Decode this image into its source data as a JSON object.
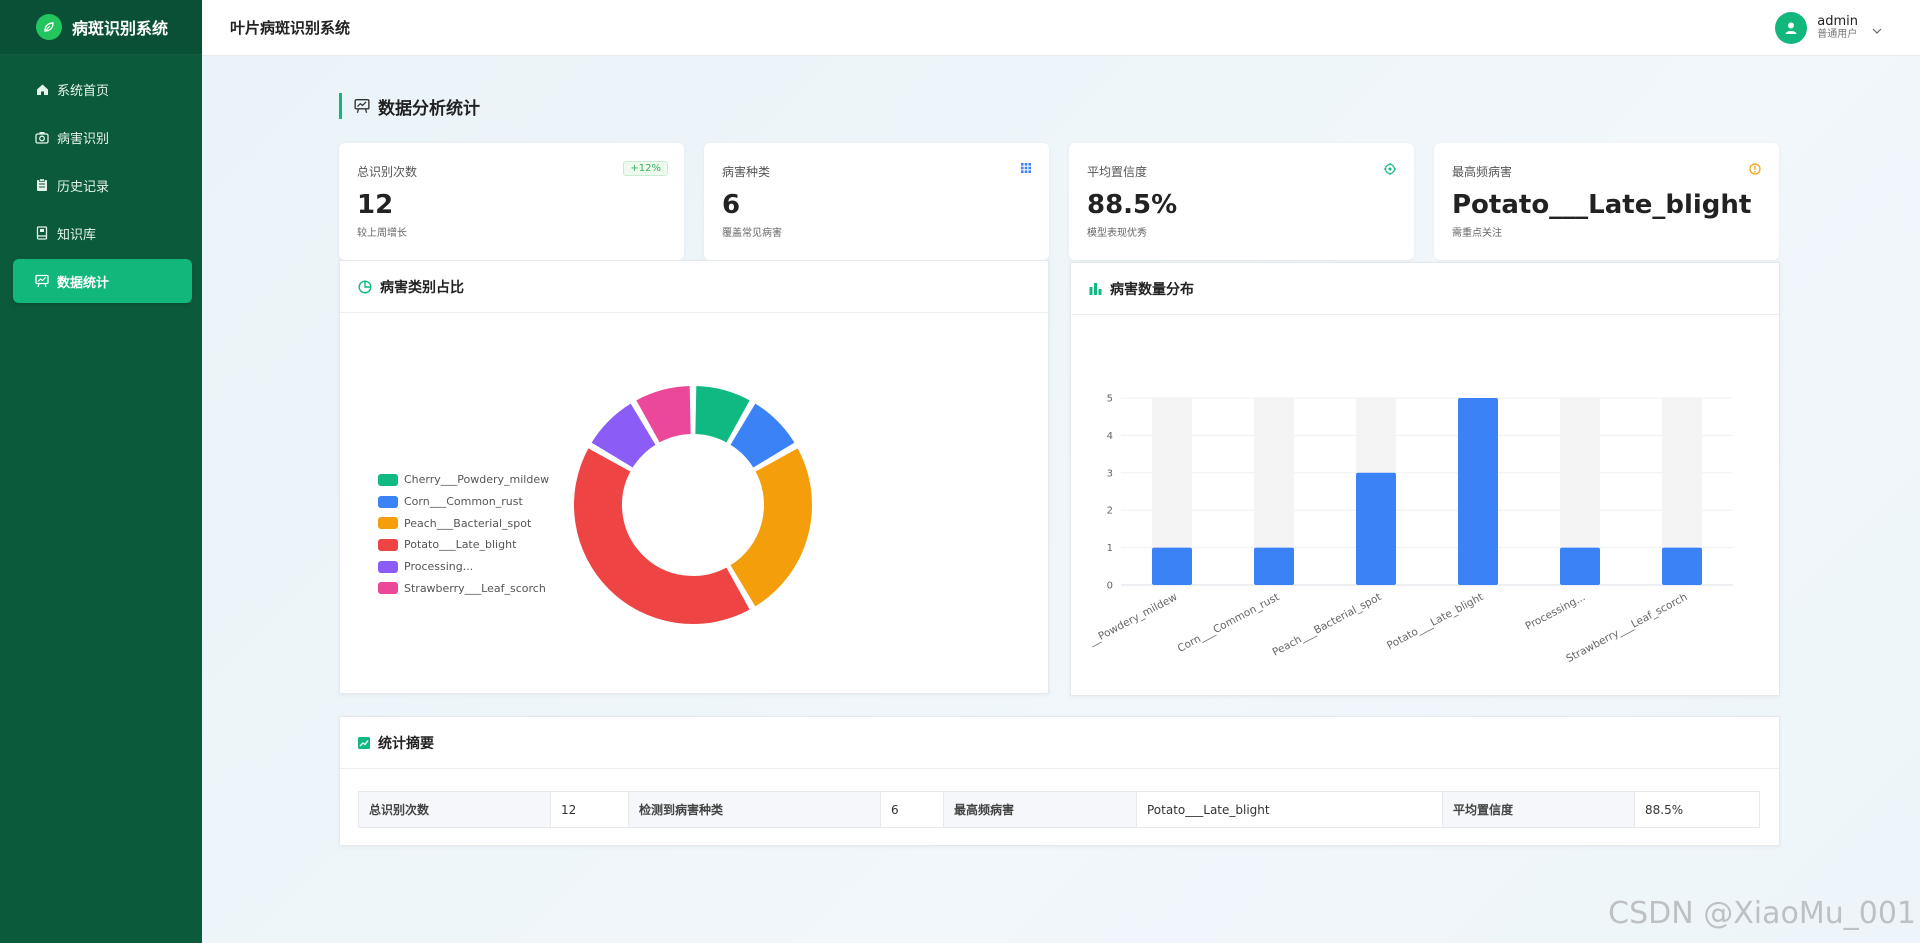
{
  "app": {
    "title": "病斑识别系统"
  },
  "sidebar": {
    "items": [
      {
        "label": "系统首页",
        "icon": "home-icon"
      },
      {
        "label": "病害识别",
        "icon": "camera-icon"
      },
      {
        "label": "历史记录",
        "icon": "clipboard-icon"
      },
      {
        "label": "知识库",
        "icon": "book-icon"
      },
      {
        "label": "数据统计",
        "icon": "chart-board-icon",
        "active": true
      }
    ]
  },
  "header": {
    "title": "叶片病斑识别系统"
  },
  "user": {
    "name": "admin",
    "role": "普通用户"
  },
  "page": {
    "title": "数据分析统计"
  },
  "stats": [
    {
      "label": "总识别次数",
      "value": "12",
      "sub": "较上周增长",
      "badge": "+12%"
    },
    {
      "label": "病害种类",
      "value": "6",
      "sub": "覆盖常见病害",
      "icon": "grid-icon"
    },
    {
      "label": "平均置信度",
      "value": "88.5%",
      "sub": "模型表现优秀",
      "icon": "target-icon"
    },
    {
      "label": "最高频病害",
      "value": "Potato___Late_blight",
      "sub": "需重点关注",
      "icon": "warning-icon"
    }
  ],
  "panels": {
    "pie_title": "病害类别占比",
    "bar_title": "病害数量分布",
    "summary_title": "统计摘要"
  },
  "colors": {
    "accent": "#12b77b",
    "sidebar_bg": "#0c5a3c",
    "bar": "#3b82f6",
    "pie": [
      "#10b981",
      "#3b82f6",
      "#f59e0b",
      "#ef4444",
      "#8b5cf6",
      "#ec4899"
    ]
  },
  "chart_data": [
    {
      "type": "pie",
      "variant": "donut",
      "legend_position": "left",
      "categories": [
        "Cherry___Powdery_mildew",
        "Corn___Common_rust",
        "Peach___Bacterial_spot",
        "Potato___Late_blight",
        "Processing...",
        "Strawberry___Leaf_scorch"
      ],
      "values": [
        1,
        1,
        3,
        5,
        1,
        1
      ]
    },
    {
      "type": "bar",
      "categories": [
        "Cherry___Powdery_mildew",
        "Corn___Common_rust",
        "Peach___Bacterial_spot",
        "Potato___Late_blight",
        "Processing...",
        "Strawberry___Leaf_scorch"
      ],
      "tick_labels": [
        "__Powdery_mildew",
        "Corn___Common_rust",
        "Peach___Bacterial_spot",
        "Potato___Late_blight",
        "Processing...",
        "Strawberry___Leaf_scorch"
      ],
      "values": [
        1,
        1,
        3,
        5,
        1,
        1
      ],
      "ylim": [
        0,
        5
      ],
      "yticks": [
        0,
        1,
        2,
        3,
        4,
        5
      ],
      "grid": true
    }
  ],
  "summary": {
    "rows": [
      [
        {
          "k": "总识别次数",
          "v": "12"
        },
        {
          "k": "检测到病害种类",
          "v": "6"
        },
        {
          "k": "最高频病害",
          "v": "Potato___Late_blight"
        },
        {
          "k": "平均置信度",
          "v": "88.5%"
        }
      ]
    ]
  },
  "watermark": "CSDN @XiaoMu_001"
}
